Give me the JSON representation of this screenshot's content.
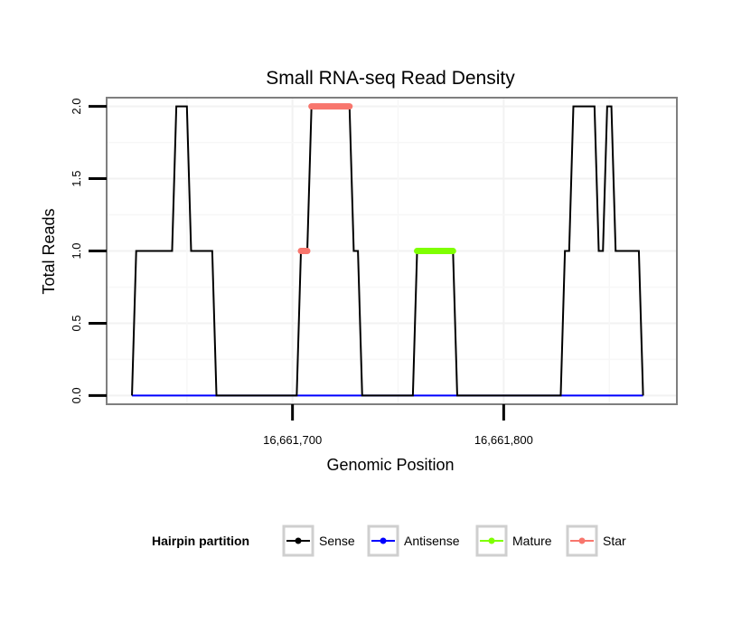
{
  "chart_data": {
    "type": "line",
    "title": "Small RNA-seq Read Density",
    "xlabel": "Genomic Position",
    "ylabel": "Total Reads",
    "xlim": [
      16661612,
      16661882
    ],
    "ylim": [
      -0.06,
      2.06
    ],
    "x_ticks": [
      {
        "value": 16661700,
        "label": "16,661,700"
      },
      {
        "value": 16661800,
        "label": "16,661,800"
      }
    ],
    "y_ticks": [
      {
        "value": 0,
        "label": "0.0"
      },
      {
        "value": 0.5,
        "label": "0.5"
      },
      {
        "value": 1,
        "label": "1.0"
      },
      {
        "value": 1.5,
        "label": "1.5"
      },
      {
        "value": 2,
        "label": "2.0"
      }
    ],
    "grid": true,
    "legend": {
      "title": "Hairpin partition",
      "position": "bottom",
      "entries": [
        {
          "name": "Sense",
          "color": "#000000"
        },
        {
          "name": "Antisense",
          "color": "#0000ff"
        },
        {
          "name": "Mature",
          "color": "#7fff00"
        },
        {
          "name": "Star",
          "color": "#f8766d"
        }
      ]
    },
    "series": [
      {
        "name": "Sense",
        "color": "#000000",
        "x": [
          16661624,
          16661626,
          16661643,
          16661645,
          16661650,
          16661652,
          16661662,
          16661664,
          16661702,
          16661704,
          16661707,
          16661709,
          16661727,
          16661729,
          16661731,
          16661733,
          16661757,
          16661759,
          16661776,
          16661778,
          16661827,
          16661829,
          16661831,
          16661833,
          16661843,
          16661845,
          16661847,
          16661849,
          16661851,
          16661853,
          16661864,
          16661866
        ],
        "y": [
          0,
          1,
          1,
          2,
          2,
          1,
          1,
          0,
          0,
          1,
          1,
          2,
          2,
          1,
          1,
          0,
          0,
          1,
          1,
          0,
          0,
          1,
          1,
          2,
          2,
          1,
          1,
          2,
          2,
          1,
          1,
          0
        ]
      },
      {
        "name": "Antisense",
        "color": "#0000ff",
        "x": [
          16661624,
          16661866
        ],
        "y": [
          0,
          0
        ]
      },
      {
        "name": "Mature",
        "color": "#7fff00",
        "x": [
          16661759,
          16661776
        ],
        "y": [
          1,
          1
        ]
      },
      {
        "name": "Star",
        "color": "#f8766d",
        "segments": [
          {
            "x": [
              16661704,
              16661707
            ],
            "y": [
              1,
              1
            ]
          },
          {
            "x": [
              16661709,
              16661727
            ],
            "y": [
              2,
              2
            ]
          }
        ]
      }
    ]
  }
}
